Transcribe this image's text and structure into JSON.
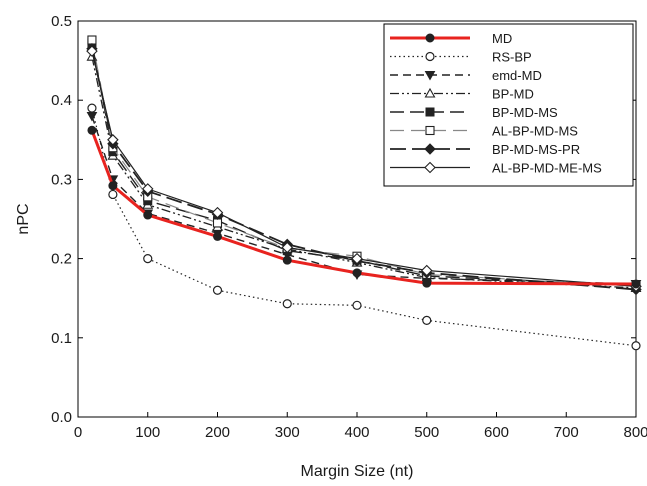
{
  "chart_data": {
    "type": "line",
    "title": "",
    "xlabel": "Margin Size (nt)",
    "ylabel": "nPC",
    "xlim": [
      0,
      800
    ],
    "ylim": [
      0.0,
      0.5
    ],
    "x_ticks": [
      0,
      100,
      200,
      300,
      400,
      500,
      600,
      700,
      800
    ],
    "x_tick_labels": [
      "0",
      "100",
      "200",
      "300",
      "400",
      "500",
      "600",
      "700",
      "800"
    ],
    "y_ticks": [
      0.0,
      0.1,
      0.2,
      0.3,
      0.4,
      0.5
    ],
    "y_tick_labels": [
      "0.0",
      "0.1",
      "0.2",
      "0.3",
      "0.4",
      "0.5"
    ],
    "grid": false,
    "legend_position": "top-right",
    "x": [
      20,
      50,
      100,
      200,
      300,
      400,
      500,
      800
    ],
    "series": [
      {
        "name": "MD",
        "color": "#e8231f",
        "dash": "solid",
        "marker": "circle-filled",
        "values": [
          0.362,
          0.292,
          0.255,
          0.228,
          0.198,
          0.182,
          0.169,
          0.168
        ]
      },
      {
        "name": "RS-BP",
        "color": "#222222",
        "dash": "dotted",
        "marker": "circle-open",
        "values": [
          0.39,
          0.281,
          0.2,
          0.16,
          0.143,
          0.141,
          0.122,
          0.09
        ]
      },
      {
        "name": "emd-MD",
        "color": "#222222",
        "dash": "dashed",
        "marker": "triangle-down",
        "values": [
          0.38,
          0.3,
          0.257,
          0.232,
          0.205,
          0.18,
          0.175,
          0.168
        ]
      },
      {
        "name": "BP-MD",
        "color": "#222222",
        "dash": "dash-dot-dot",
        "marker": "triangle-up-open",
        "values": [
          0.455,
          0.33,
          0.268,
          0.24,
          0.212,
          0.195,
          0.176,
          0.163
        ]
      },
      {
        "name": "BP-MD-MS",
        "color": "#222222",
        "dash": "long-dash",
        "marker": "square-filled",
        "values": [
          0.472,
          0.335,
          0.273,
          0.248,
          0.21,
          0.198,
          0.178,
          0.166
        ]
      },
      {
        "name": "AL-BP-MD-MS",
        "color": "#888888",
        "dash": "long-dash-light",
        "marker": "square-open",
        "values": [
          0.476,
          0.34,
          0.278,
          0.245,
          0.213,
          0.203,
          0.18,
          0.165
        ]
      },
      {
        "name": "BP-MD-MS-PR",
        "color": "#222222",
        "dash": "long-dash-bold",
        "marker": "diamond-filled",
        "values": [
          0.465,
          0.345,
          0.285,
          0.256,
          0.218,
          0.197,
          0.182,
          0.161
        ]
      },
      {
        "name": "AL-BP-MD-ME-MS",
        "color": "#222222",
        "dash": "solid-thin",
        "marker": "diamond-open",
        "values": [
          0.462,
          0.35,
          0.288,
          0.258,
          0.214,
          0.2,
          0.185,
          0.165
        ]
      }
    ]
  }
}
